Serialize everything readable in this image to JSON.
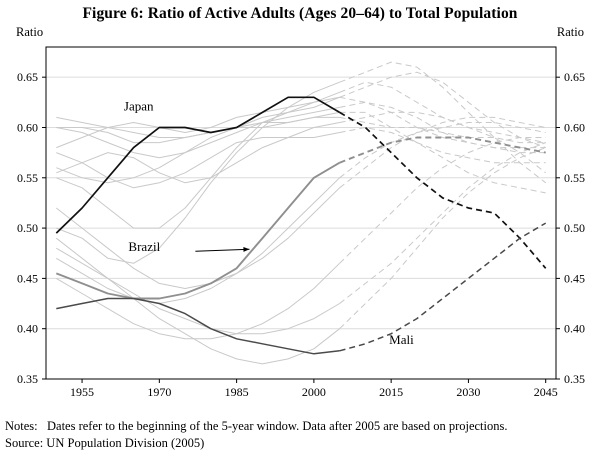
{
  "title": "Figure 6: Ratio of Active Adults (Ages 20–64) to Total Population",
  "notes": "Notes:   Dates refer to the beginning of the 5-year window. Data after 2005 are based on projections.",
  "source": "Source: UN Population Division (2005)",
  "axis": {
    "left_label": "Ratio",
    "right_label": "Ratio"
  },
  "chart_data": {
    "type": "line",
    "title": "Ratio of Active Adults (Ages 20–64) to Total Population",
    "xlabel": "",
    "ylabel": "Ratio",
    "xlim": [
      1948,
      2047
    ],
    "ylim": [
      0.35,
      0.68
    ],
    "x_ticks": [
      1955,
      1970,
      1985,
      2000,
      2015,
      2030,
      2045
    ],
    "y_ticks": [
      "0.35",
      "0.40",
      "0.45",
      "0.50",
      "0.55",
      "0.60",
      "0.65"
    ],
    "grid": "horizontal",
    "dashed_after": 2005,
    "x": [
      1950,
      1955,
      1960,
      1965,
      1970,
      1975,
      1980,
      1985,
      1990,
      1995,
      2000,
      2005,
      2010,
      2015,
      2020,
      2025,
      2030,
      2035,
      2040,
      2045
    ],
    "series": [
      {
        "name": "Japan",
        "color": "#111111",
        "width": 1.7,
        "values": [
          0.495,
          0.52,
          0.55,
          0.58,
          0.6,
          0.6,
          0.595,
          0.6,
          0.615,
          0.63,
          0.63,
          0.615,
          0.6,
          0.575,
          0.55,
          0.53,
          0.52,
          0.515,
          0.49,
          0.46
        ]
      },
      {
        "name": "Brazil",
        "color": "#8f8f8f",
        "width": 1.9,
        "values": [
          0.455,
          0.445,
          0.435,
          0.43,
          0.43,
          0.435,
          0.445,
          0.46,
          0.49,
          0.52,
          0.55,
          0.565,
          0.575,
          0.585,
          0.59,
          0.59,
          0.59,
          0.585,
          0.58,
          0.575
        ]
      },
      {
        "name": "Mali",
        "color": "#4a4a4a",
        "width": 1.5,
        "values": [
          0.42,
          0.425,
          0.43,
          0.43,
          0.425,
          0.415,
          0.4,
          0.39,
          0.385,
          0.38,
          0.375,
          0.378,
          0.385,
          0.395,
          0.41,
          0.43,
          0.45,
          0.47,
          0.49,
          0.505
        ]
      }
    ],
    "background_color": "#c9c9c9",
    "background_series": [
      [
        0.575,
        0.565,
        0.55,
        0.54,
        0.545,
        0.555,
        0.57,
        0.585,
        0.59,
        0.59,
        0.59,
        0.595,
        0.6,
        0.595,
        0.585,
        0.575,
        0.57,
        0.565,
        0.565,
        0.565
      ],
      [
        0.6,
        0.6,
        0.595,
        0.585,
        0.585,
        0.59,
        0.595,
        0.6,
        0.605,
        0.605,
        0.61,
        0.615,
        0.615,
        0.6,
        0.585,
        0.57,
        0.555,
        0.545,
        0.54,
        0.535
      ],
      [
        0.5,
        0.49,
        0.47,
        0.465,
        0.48,
        0.51,
        0.545,
        0.575,
        0.6,
        0.62,
        0.635,
        0.645,
        0.655,
        0.665,
        0.66,
        0.64,
        0.615,
        0.59,
        0.565,
        0.545
      ],
      [
        0.55,
        0.54,
        0.52,
        0.5,
        0.5,
        0.52,
        0.55,
        0.58,
        0.605,
        0.615,
        0.625,
        0.635,
        0.645,
        0.64,
        0.625,
        0.61,
        0.6,
        0.59,
        0.575,
        0.555
      ],
      [
        0.61,
        0.605,
        0.6,
        0.595,
        0.59,
        0.59,
        0.595,
        0.6,
        0.6,
        0.605,
        0.61,
        0.61,
        0.605,
        0.6,
        0.6,
        0.595,
        0.59,
        0.59,
        0.585,
        0.585
      ],
      [
        0.47,
        0.455,
        0.44,
        0.43,
        0.425,
        0.43,
        0.44,
        0.455,
        0.475,
        0.5,
        0.525,
        0.55,
        0.57,
        0.585,
        0.595,
        0.6,
        0.605,
        0.605,
        0.6,
        0.595
      ],
      [
        0.52,
        0.5,
        0.48,
        0.46,
        0.445,
        0.44,
        0.445,
        0.455,
        0.47,
        0.49,
        0.515,
        0.54,
        0.56,
        0.58,
        0.595,
        0.605,
        0.61,
        0.61,
        0.605,
        0.6
      ],
      [
        0.45,
        0.435,
        0.42,
        0.405,
        0.395,
        0.39,
        0.39,
        0.395,
        0.405,
        0.42,
        0.44,
        0.465,
        0.49,
        0.515,
        0.54,
        0.56,
        0.575,
        0.585,
        0.59,
        0.59
      ],
      [
        0.48,
        0.465,
        0.45,
        0.435,
        0.42,
        0.41,
        0.4,
        0.395,
        0.395,
        0.4,
        0.41,
        0.425,
        0.445,
        0.465,
        0.49,
        0.515,
        0.54,
        0.56,
        0.575,
        0.585
      ],
      [
        0.58,
        0.59,
        0.6,
        0.605,
        0.6,
        0.595,
        0.6,
        0.61,
        0.615,
        0.62,
        0.625,
        0.63,
        0.625,
        0.615,
        0.6,
        0.59,
        0.585,
        0.58,
        0.58,
        0.58
      ],
      [
        0.555,
        0.565,
        0.575,
        0.57,
        0.555,
        0.545,
        0.55,
        0.565,
        0.58,
        0.59,
        0.6,
        0.605,
        0.61,
        0.615,
        0.615,
        0.61,
        0.6,
        0.595,
        0.59,
        0.585
      ],
      [
        0.49,
        0.47,
        0.45,
        0.43,
        0.41,
        0.395,
        0.38,
        0.37,
        0.365,
        0.37,
        0.38,
        0.4,
        0.425,
        0.45,
        0.48,
        0.51,
        0.535,
        0.555,
        0.57,
        0.58
      ],
      [
        0.6,
        0.595,
        0.585,
        0.575,
        0.57,
        0.575,
        0.585,
        0.595,
        0.605,
        0.61,
        0.615,
        0.62,
        0.625,
        0.62,
        0.61,
        0.595,
        0.585,
        0.58,
        0.575,
        0.575
      ],
      [
        0.56,
        0.55,
        0.545,
        0.55,
        0.56,
        0.575,
        0.59,
        0.6,
        0.61,
        0.615,
        0.62,
        0.63,
        0.64,
        0.65,
        0.655,
        0.645,
        0.625,
        0.605,
        0.59,
        0.58
      ]
    ],
    "labels": [
      {
        "text": "Japan",
        "x": 1966,
        "y": 0.617,
        "anchor": "middle",
        "color": "#000000"
      },
      {
        "text": "Brazil",
        "x": 1964,
        "y": 0.477,
        "anchor": "start",
        "color": "#222222",
        "arrow": {
          "x1": 1977,
          "y1": 0.477,
          "x2": 1987.5,
          "y2": 0.479
        }
      },
      {
        "text": "Mali",
        "x": 2017,
        "y": 0.385,
        "anchor": "middle",
        "color": "#222222"
      }
    ],
    "legend": "none"
  }
}
